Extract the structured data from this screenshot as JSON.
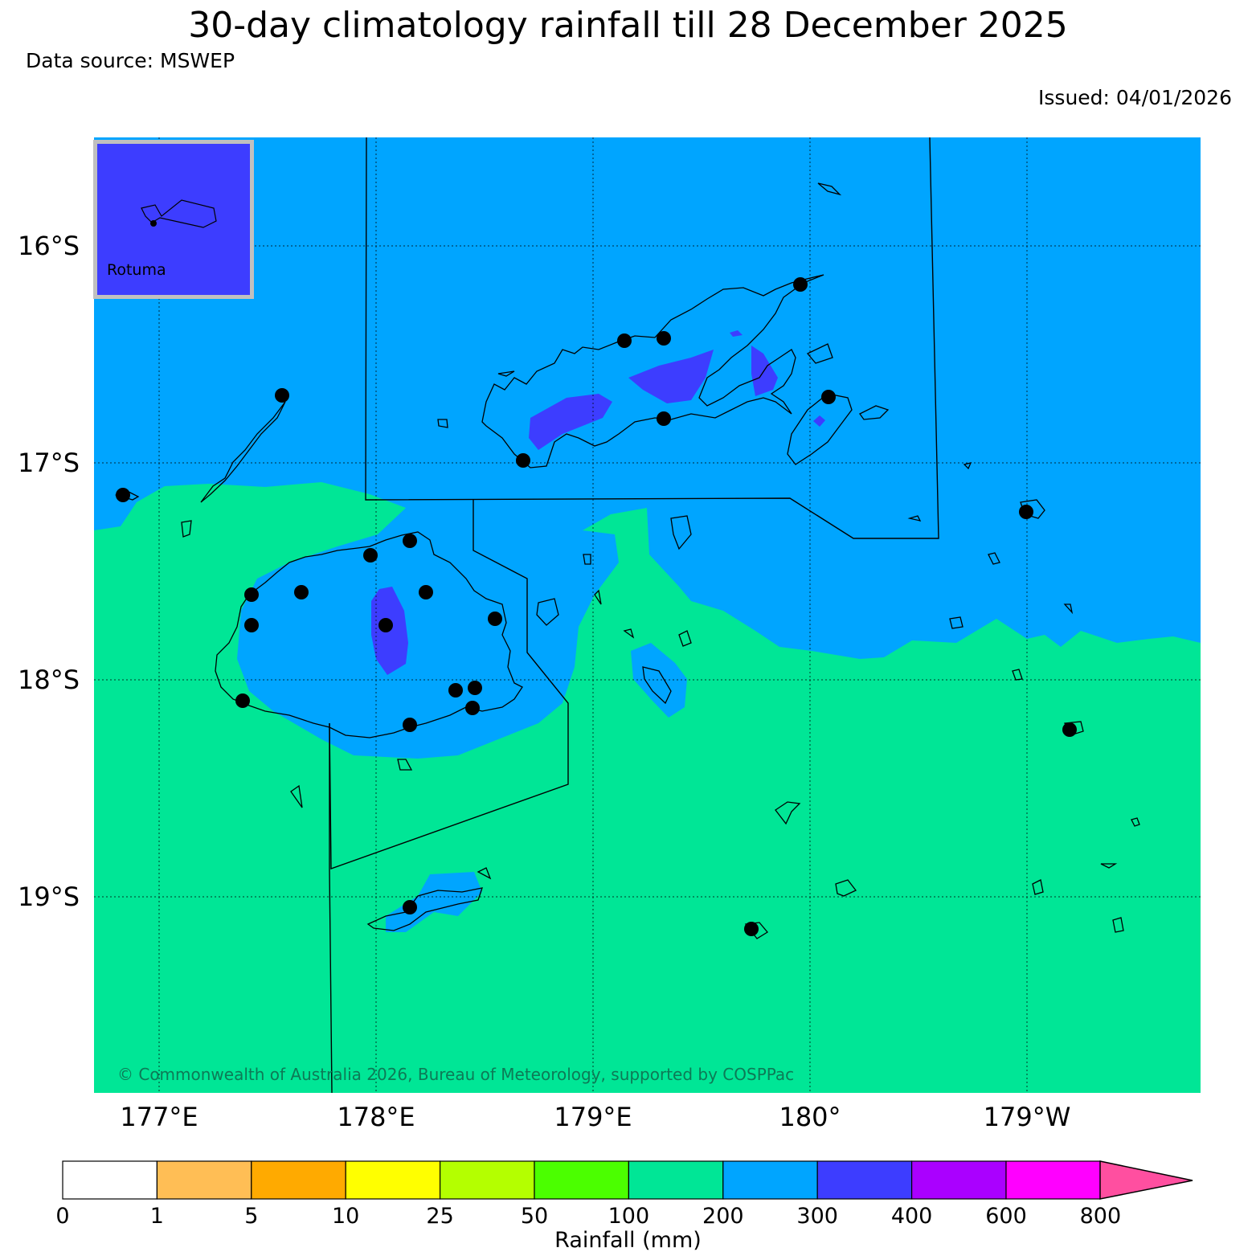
{
  "title": "30-day climatology rainfall till 28 December 2025",
  "source": "Data source: MSWEP",
  "issued": "Issued: 04/01/2026",
  "inset_label": "Rotuma",
  "copyright": "© Commonwealth of Australia 2026, Bureau of Meteorology, supported by COSPPac",
  "lat_labels": [
    "16°S",
    "17°S",
    "18°S",
    "19°S"
  ],
  "lon_labels": [
    "177°E",
    "178°E",
    "179°E",
    "180°",
    "179°W"
  ],
  "colors": {
    "band_100_200": "#00e696",
    "band_200_300": "#00a5ff",
    "band_300_400": "#3d3dff",
    "inset_border": "#c0c0c0"
  },
  "colorbar": {
    "label": "Rainfall (mm)",
    "ticks": [
      "0",
      "1",
      "5",
      "10",
      "25",
      "50",
      "100",
      "200",
      "300",
      "400",
      "600",
      "800"
    ],
    "colors": [
      "#ffffff",
      "#ffbe55",
      "#ffaa00",
      "#ffff00",
      "#b4ff00",
      "#4bff00",
      "#00e696",
      "#00a5ff",
      "#3d3dff",
      "#aa00ff",
      "#ff00ff"
    ],
    "extend_color": "#ff4fa0"
  }
}
